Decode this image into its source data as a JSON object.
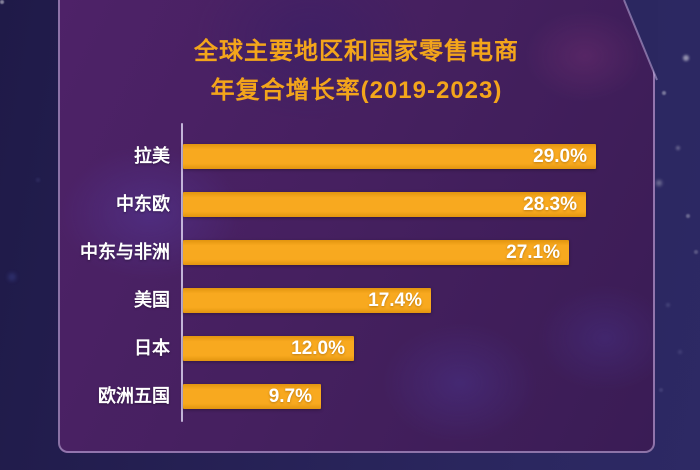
{
  "title": {
    "line1": "全球主要地区和国家零售电商",
    "line2": "年复合增长率(2019-2023)",
    "color": "#f3a51b"
  },
  "chart_data": {
    "type": "bar",
    "orientation": "horizontal",
    "title": "全球主要地区和国家零售电商 年复合增长率(2019-2023)",
    "categories": [
      "拉美",
      "中东欧",
      "中东与非洲",
      "美国",
      "日本",
      "欧洲五国"
    ],
    "values": [
      29.0,
      28.3,
      27.1,
      17.4,
      12.0,
      9.7
    ],
    "value_labels": [
      "29.0%",
      "28.3%",
      "27.1%",
      "17.4%",
      "12.0%",
      "9.7%"
    ],
    "unit": "%",
    "xlim": [
      0,
      30
    ],
    "grid": false,
    "legend": false,
    "bar_color": "#f6a41d",
    "category_label_color": "#ffffff",
    "value_label_color": "#ffffff",
    "title_color": "#f3a51b",
    "panel_background": "#44205f",
    "page_background": "#272259"
  }
}
